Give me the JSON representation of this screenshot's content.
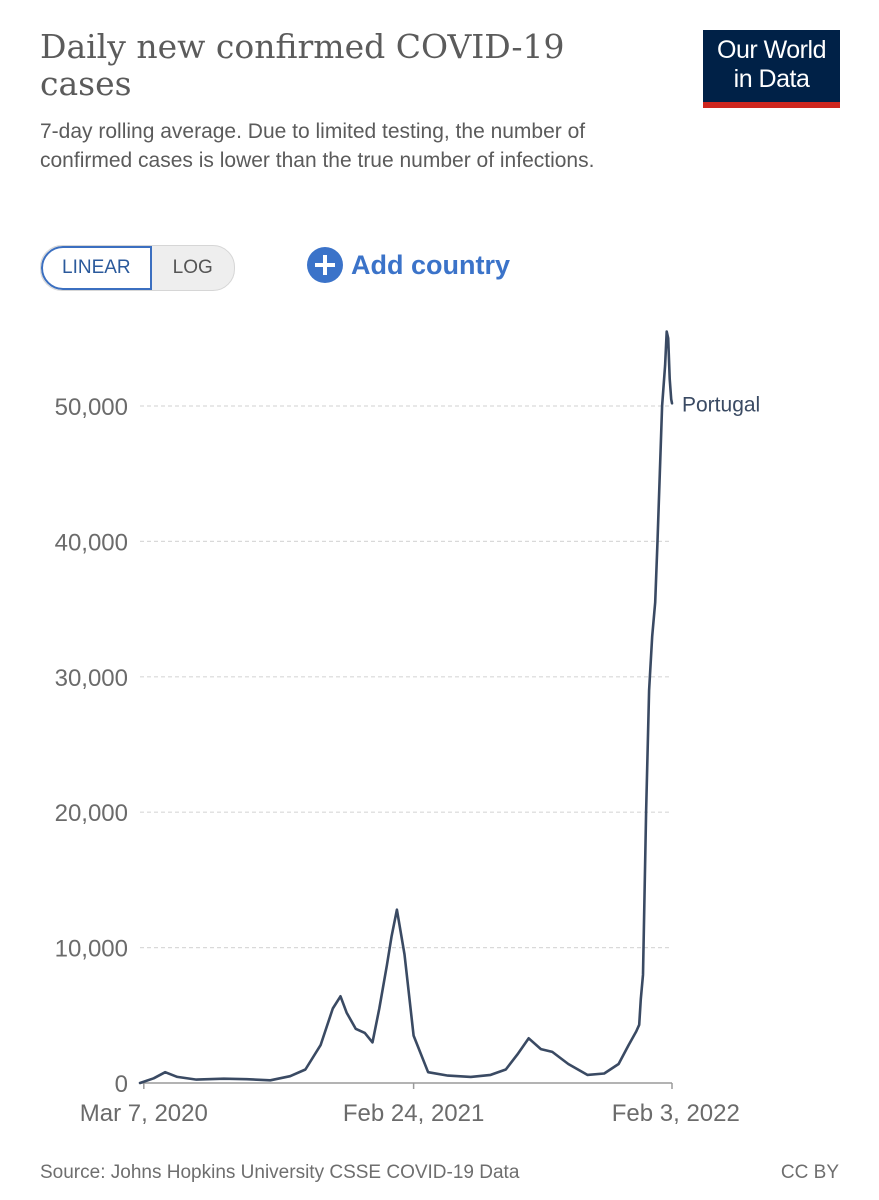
{
  "header": {
    "title": "Daily new confirmed COVID-19 cases",
    "subtitle": "7-day rolling average. Due to limited testing, the number of confirmed cases is lower than the true number of infections.",
    "logo_line1": "Our World",
    "logo_line2": "in Data"
  },
  "controls": {
    "linear_label": "LINEAR",
    "log_label": "LOG",
    "active_scale": "linear",
    "add_country_label": "Add country"
  },
  "footer": {
    "source": "Source: Johns Hopkins University CSSE COVID-19 Data",
    "license": "CC BY"
  },
  "colors": {
    "line": "#3a4a63",
    "accent": "#3b73c9",
    "logo_bg": "#002147",
    "logo_bar": "#ce261e"
  },
  "chart_data": {
    "type": "line",
    "title": "Daily new confirmed COVID-19 cases",
    "subtitle": "7-day rolling average. Due to limited testing, the number of confirmed cases is lower than the true number of infections.",
    "xlabel": "",
    "ylabel": "",
    "grid": "horizontal dashed",
    "legend": "inline label at line end",
    "xlim": [
      "2020-03-02",
      "2022-01-29"
    ],
    "ylim": [
      0,
      55000
    ],
    "y_ticks": [
      0,
      10000,
      20000,
      30000,
      40000,
      50000
    ],
    "y_tick_labels": [
      "0",
      "10,000",
      "20,000",
      "30,000",
      "40,000",
      "50,000"
    ],
    "x_ticks": [
      "2020-03-07",
      "2021-02-24",
      "2022-02-03"
    ],
    "x_tick_labels": [
      "Mar 7, 2020",
      "Feb 24, 2021",
      "Feb 3, 2022"
    ],
    "series": [
      {
        "name": "Portugal",
        "x": [
          "2020-03-02",
          "2020-03-20",
          "2020-04-04",
          "2020-04-20",
          "2020-05-15",
          "2020-06-20",
          "2020-07-20",
          "2020-08-20",
          "2020-09-15",
          "2020-10-05",
          "2020-10-25",
          "2020-11-10",
          "2020-11-20",
          "2020-11-28",
          "2020-12-10",
          "2020-12-22",
          "2021-01-01",
          "2021-01-10",
          "2021-01-20",
          "2021-01-26",
          "2021-02-02",
          "2021-02-12",
          "2021-02-24",
          "2021-03-15",
          "2021-04-10",
          "2021-05-10",
          "2021-06-05",
          "2021-06-25",
          "2021-07-10",
          "2021-07-25",
          "2021-08-10",
          "2021-08-25",
          "2021-09-15",
          "2021-10-10",
          "2021-11-01",
          "2021-11-20",
          "2021-12-03",
          "2021-12-13",
          "2021-12-17",
          "2021-12-19",
          "2021-12-22",
          "2021-12-26",
          "2021-12-30",
          "2022-01-03",
          "2022-01-07",
          "2022-01-10",
          "2022-01-13",
          "2022-01-16",
          "2022-01-20",
          "2022-01-22",
          "2022-01-24",
          "2022-01-26",
          "2022-01-28",
          "2022-01-29"
        ],
        "y": [
          0,
          350,
          800,
          450,
          250,
          320,
          280,
          200,
          500,
          1000,
          2800,
          5500,
          6400,
          5200,
          4000,
          3700,
          3000,
          5500,
          8700,
          10800,
          12800,
          9500,
          3500,
          800,
          550,
          450,
          600,
          1000,
          2100,
          3300,
          2500,
          2300,
          1400,
          600,
          700,
          1400,
          2800,
          3800,
          4300,
          6200,
          8000,
          20000,
          29000,
          33000,
          35500,
          40000,
          45000,
          50000,
          53000,
          55500,
          55000,
          52000,
          50500,
          50200
        ]
      }
    ]
  }
}
